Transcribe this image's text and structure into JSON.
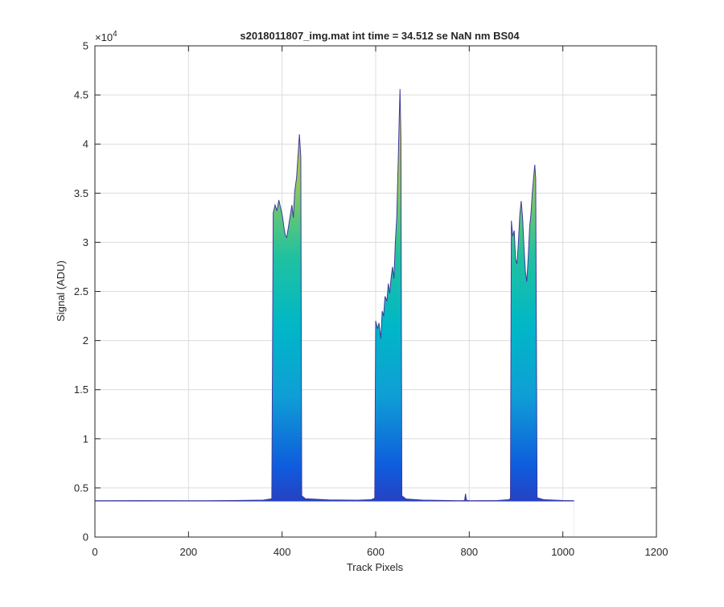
{
  "chart_data": {
    "type": "area",
    "title": "s2018011807_img.mat int time = 34.512 se  NaN nm BS04",
    "xlabel": "Track Pixels",
    "ylabel": "Signal (ADU)",
    "xlim": [
      0,
      1200
    ],
    "ylim": [
      0,
      50000
    ],
    "x_ticks": [
      0,
      200,
      400,
      600,
      800,
      1000,
      1200
    ],
    "y_ticks": [
      0,
      0.5,
      1,
      1.5,
      2,
      2.5,
      3,
      3.5,
      4,
      4.5,
      5
    ],
    "y_exponent_label": "×10",
    "y_exponent_power": "4",
    "grid": true,
    "colormap": [
      "#3e26a8",
      "#0f5cdd",
      "#0f9ed5",
      "#00b7c7",
      "#20c1a0",
      "#8dc860",
      "#d6bf38",
      "#f9e11e"
    ],
    "baseline_color": "#3e3b9e",
    "series": [
      {
        "values": [
          [
            0,
            3700
          ],
          [
            100,
            3710
          ],
          [
            200,
            3700
          ],
          [
            300,
            3720
          ],
          [
            360,
            3760
          ],
          [
            378,
            3900
          ],
          [
            381,
            33000
          ],
          [
            385,
            33800
          ],
          [
            389,
            33200
          ],
          [
            393,
            34300
          ],
          [
            397,
            33500
          ],
          [
            401,
            32600
          ],
          [
            404,
            31500
          ],
          [
            407,
            30700
          ],
          [
            410,
            30500
          ],
          [
            413,
            31400
          ],
          [
            417,
            32600
          ],
          [
            421,
            33800
          ],
          [
            424,
            32500
          ],
          [
            427,
            35200
          ],
          [
            431,
            36600
          ],
          [
            435,
            39500
          ],
          [
            437,
            41000
          ],
          [
            440,
            38700
          ],
          [
            442,
            4200
          ],
          [
            450,
            3900
          ],
          [
            500,
            3780
          ],
          [
            560,
            3750
          ],
          [
            590,
            3800
          ],
          [
            598,
            3950
          ],
          [
            600,
            22000
          ],
          [
            604,
            21200
          ],
          [
            607,
            21800
          ],
          [
            611,
            20200
          ],
          [
            614,
            23000
          ],
          [
            617,
            22500
          ],
          [
            620,
            24500
          ],
          [
            624,
            24000
          ],
          [
            627,
            25800
          ],
          [
            630,
            24800
          ],
          [
            633,
            26400
          ],
          [
            636,
            27500
          ],
          [
            639,
            26300
          ],
          [
            642,
            30000
          ],
          [
            645,
            32500
          ],
          [
            648,
            38000
          ],
          [
            650,
            42000
          ],
          [
            652,
            45600
          ],
          [
            654,
            40500
          ],
          [
            656,
            4200
          ],
          [
            665,
            3880
          ],
          [
            700,
            3760
          ],
          [
            780,
            3700
          ],
          [
            790,
            3720
          ],
          [
            792,
            4400
          ],
          [
            794,
            3750
          ],
          [
            800,
            3700
          ],
          [
            860,
            3720
          ],
          [
            885,
            3800
          ],
          [
            888,
            3950
          ],
          [
            890,
            32200
          ],
          [
            893,
            30600
          ],
          [
            896,
            31200
          ],
          [
            899,
            28300
          ],
          [
            902,
            27800
          ],
          [
            905,
            30000
          ],
          [
            908,
            32800
          ],
          [
            911,
            34200
          ],
          [
            914,
            32500
          ],
          [
            917,
            29500
          ],
          [
            920,
            27000
          ],
          [
            923,
            26000
          ],
          [
            926,
            28500
          ],
          [
            929,
            31500
          ],
          [
            932,
            33000
          ],
          [
            935,
            35200
          ],
          [
            938,
            36800
          ],
          [
            940,
            37900
          ],
          [
            942,
            36500
          ],
          [
            945,
            4000
          ],
          [
            960,
            3800
          ],
          [
            1000,
            3720
          ],
          [
            1024,
            3700
          ]
        ]
      }
    ]
  }
}
